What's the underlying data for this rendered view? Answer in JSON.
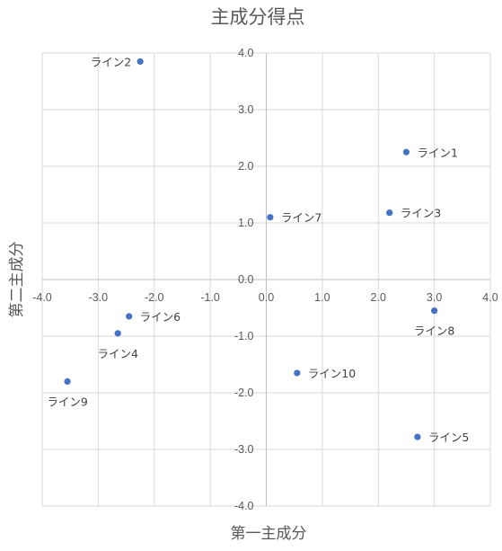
{
  "chart_data": {
    "type": "scatter",
    "title": "主成分得点",
    "xlabel": "第一主成分",
    "ylabel": "第二主成分",
    "xlim": [
      -4.0,
      4.0
    ],
    "ylim": [
      -4.0,
      4.0
    ],
    "grid": true,
    "legend": "none",
    "x_ticks": [
      "-4.0",
      "-3.0",
      "-2.0",
      "-1.0",
      "0.0",
      "1.0",
      "2.0",
      "3.0",
      "4.0"
    ],
    "y_ticks": [
      "4.0",
      "3.0",
      "2.0",
      "1.0",
      "0.0",
      "-1.0",
      "-2.0",
      "-3.0",
      "-4.0"
    ],
    "marker_color": "#4472c4",
    "points": [
      {
        "label": "ライン1",
        "x": 2.5,
        "y": 2.25,
        "label_pos": "right"
      },
      {
        "label": "ライン2",
        "x": -2.25,
        "y": 3.85,
        "label_pos": "left"
      },
      {
        "label": "ライン3",
        "x": 2.2,
        "y": 1.18,
        "label_pos": "right"
      },
      {
        "label": "ライン4",
        "x": -2.65,
        "y": -0.95,
        "label_pos": "below"
      },
      {
        "label": "ライン5",
        "x": 2.7,
        "y": -2.78,
        "label_pos": "right"
      },
      {
        "label": "ライン6",
        "x": -2.45,
        "y": -0.65,
        "label_pos": "right"
      },
      {
        "label": "ライン7",
        "x": 0.07,
        "y": 1.1,
        "label_pos": "right"
      },
      {
        "label": "ライン8",
        "x": 3.0,
        "y": -0.55,
        "label_pos": "below"
      },
      {
        "label": "ライン9",
        "x": -3.55,
        "y": -1.8,
        "label_pos": "below"
      },
      {
        "label": "ライン10",
        "x": 0.55,
        "y": -1.65,
        "label_pos": "right"
      }
    ]
  }
}
